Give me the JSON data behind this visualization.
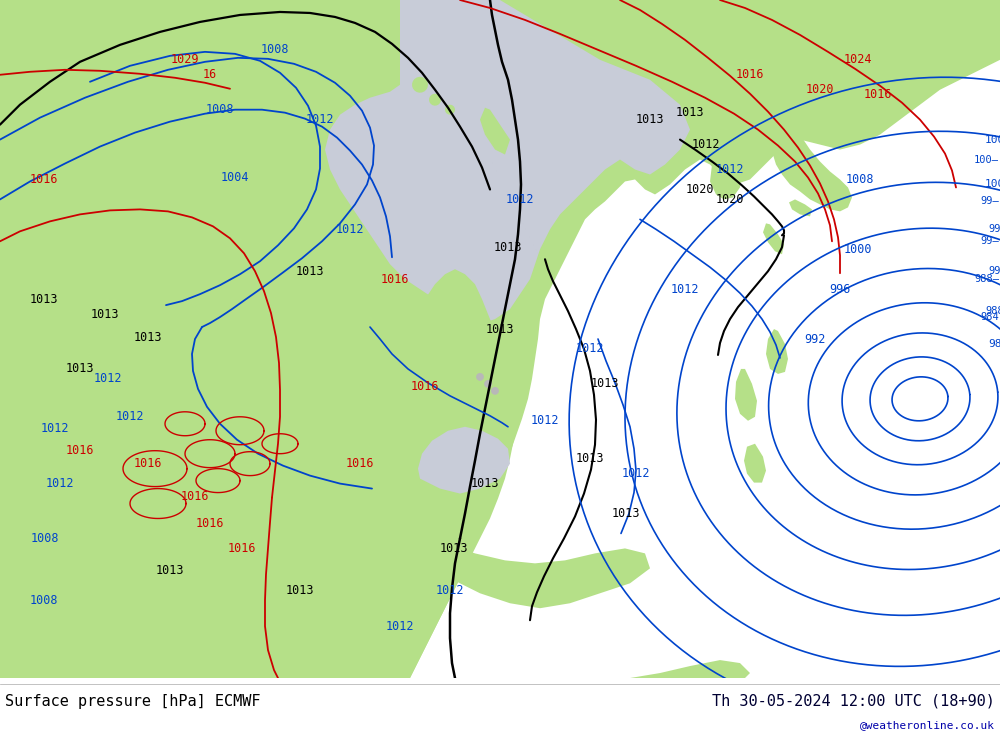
{
  "title_left": "Surface pressure [hPa] ECMWF",
  "title_right": "Th 30-05-2024 12:00 UTC (18+90)",
  "watermark": "@weatheronline.co.uk",
  "bg_green": "#b5e088",
  "bg_sea": "#c8ccd8",
  "bg_gray_land": "#b8b8b8",
  "bg_white": "#ffffff",
  "color_black": "#000000",
  "color_blue": "#0044cc",
  "color_red": "#cc0000",
  "figsize": [
    10.0,
    7.33
  ],
  "dpi": 100,
  "label_fs": 8.5,
  "title_fs": 11
}
